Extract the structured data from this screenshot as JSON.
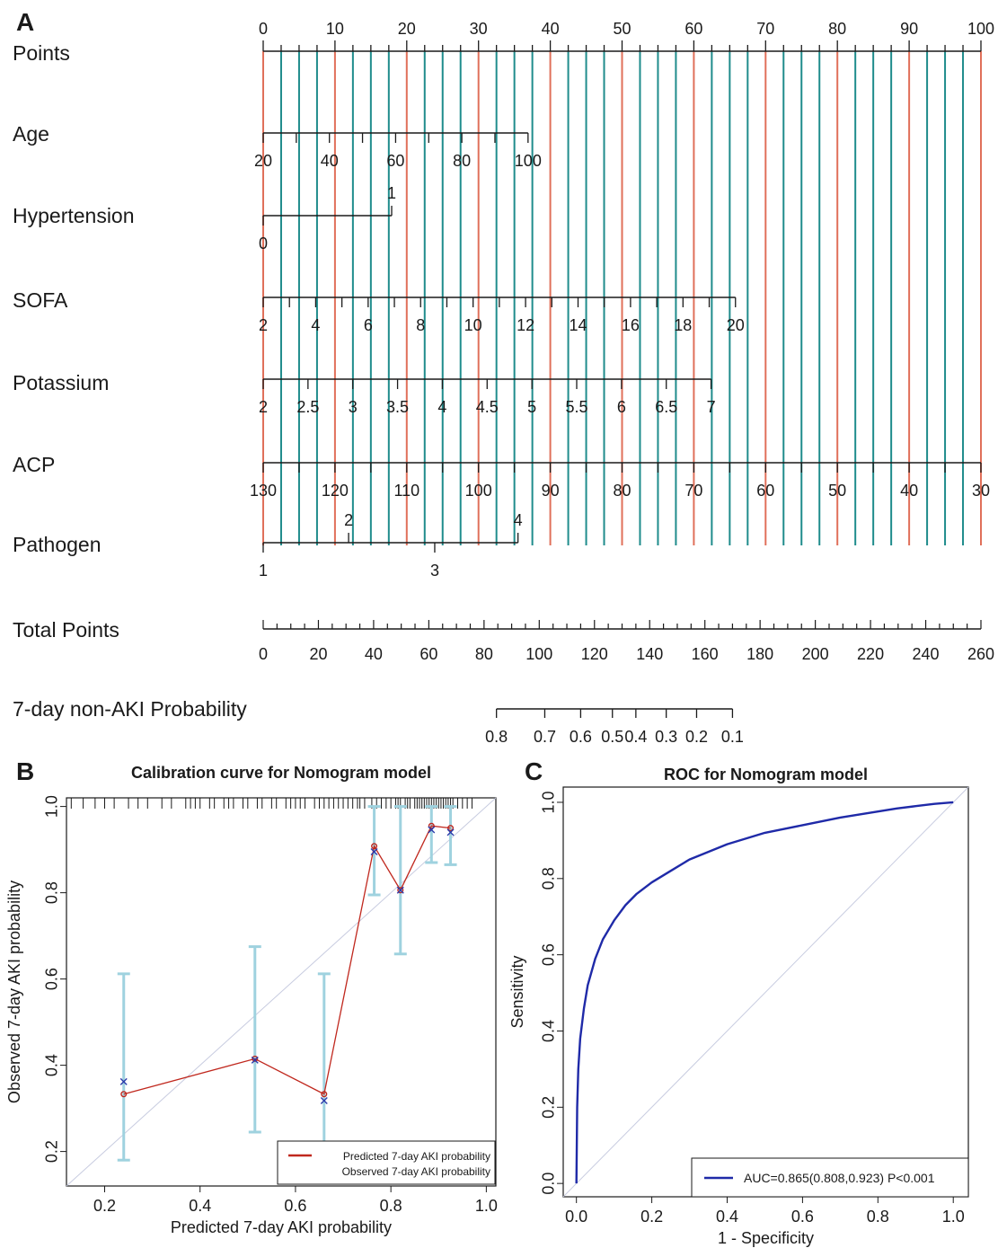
{
  "panels": {
    "a": {
      "letter": "A"
    },
    "b": {
      "letter": "B"
    },
    "c": {
      "letter": "C"
    }
  },
  "chart_data": [
    {
      "type": "nomogram",
      "points_scale": {
        "label": "Points",
        "min": 0,
        "max": 100,
        "labels": [
          0,
          10,
          20,
          30,
          40,
          50,
          60,
          70,
          80,
          90,
          100
        ]
      },
      "variables": [
        {
          "label": "Age",
          "points_range": [
            0,
            36.9
          ],
          "ticks": [
            20,
            30,
            40,
            50,
            60,
            70,
            80,
            90,
            100
          ],
          "labels": [
            "20",
            "40",
            "60",
            "80",
            "100"
          ]
        },
        {
          "label": "Hypertension",
          "points_range": [
            0,
            17.9
          ],
          "levels": [
            {
              "label": "1",
              "points": 17.9,
              "side": "above"
            },
            {
              "label": "0",
              "points": 0,
              "side": "below"
            }
          ]
        },
        {
          "label": "SOFA",
          "points_range": [
            0,
            65.8
          ],
          "ticks": [
            2,
            3,
            4,
            5,
            6,
            7,
            8,
            9,
            10,
            11,
            12,
            13,
            14,
            15,
            16,
            17,
            18,
            19,
            20
          ],
          "labels": [
            "2",
            "4",
            "6",
            "8",
            "10",
            "12",
            "14",
            "16",
            "18",
            "20"
          ]
        },
        {
          "label": "Potassium",
          "points_range": [
            0,
            62.4
          ],
          "ticks": [
            2,
            2.5,
            3,
            3.5,
            4,
            4.5,
            5,
            5.5,
            6,
            6.5,
            7
          ],
          "labels": [
            "2",
            "2.5",
            "3",
            "3.5",
            "4",
            "4.5",
            "5",
            "5.5",
            "6",
            "6.5",
            "7"
          ]
        },
        {
          "label": "ACP",
          "points_range": [
            0,
            100
          ],
          "ticks": [
            130,
            125,
            120,
            115,
            110,
            105,
            100,
            95,
            90,
            85,
            80,
            75,
            70,
            65,
            60,
            55,
            50,
            45,
            40,
            35,
            30
          ],
          "labels": [
            "130",
            "120",
            "110",
            "100",
            "90",
            "80",
            "70",
            "60",
            "50",
            "40",
            "30"
          ]
        },
        {
          "label": "Pathogen",
          "points_range": [
            0,
            35.5
          ],
          "levels": [
            {
              "label": "1",
              "points": 0,
              "side": "below"
            },
            {
              "label": "2",
              "points": 11.9,
              "side": "above"
            },
            {
              "label": "3",
              "points": 23.9,
              "side": "below"
            },
            {
              "label": "4",
              "points": 35.5,
              "side": "above"
            }
          ]
        }
      ],
      "total_points": {
        "label": "Total Points",
        "min": 0,
        "max": 260,
        "labels": [
          0,
          20,
          40,
          60,
          80,
          100,
          120,
          140,
          160,
          180,
          200,
          220,
          240,
          260
        ]
      },
      "probability": {
        "label": "7-day non-AKI Probability",
        "ticks": [
          {
            "label": "0.8",
            "total_points": 84.5
          },
          {
            "label": "0.7",
            "total_points": 102
          },
          {
            "label": "0.6",
            "total_points": 115
          },
          {
            "label": "0.5",
            "total_points": 126.5
          },
          {
            "label": "0.4",
            "total_points": 135
          },
          {
            "label": "0.3",
            "total_points": 146
          },
          {
            "label": "0.2",
            "total_points": 157
          },
          {
            "label": "0.1",
            "total_points": 170
          }
        ]
      },
      "gridlines_points": "every 2.5 points from 0 to 100; red at multiples of 10, teal elsewhere",
      "colors": {
        "axis": "#1a1a1a",
        "grid_major": "#e0705a",
        "grid_minor": "#1f8c8c"
      }
    },
    {
      "type": "line",
      "title": "Calibration curve for Nomogram model",
      "xlabel": "Predicted 7-day AKI probability",
      "ylabel": "Observed 7-day AKI probability",
      "xlim": [
        0.12,
        1.02
      ],
      "ylim": [
        0.12,
        1.02
      ],
      "xticks": [
        "0.2",
        "0.4",
        "0.6",
        "0.8",
        "1.0"
      ],
      "yticks": [
        "0.2",
        "0.4",
        "0.6",
        "0.8",
        "1.0"
      ],
      "x": [
        0.24,
        0.515,
        0.66,
        0.765,
        0.82,
        0.885,
        0.925
      ],
      "series": [
        {
          "name": "Predicted 7-day AKI probability",
          "values": [
            0.333,
            0.415,
            0.333,
            0.908,
            0.806,
            0.955,
            0.95
          ],
          "color": "#c0281e",
          "marker": "o"
        },
        {
          "name": "Observed 7-day AKI probability",
          "values": [
            0.362,
            0.412,
            0.318,
            0.895,
            0.806,
            0.946,
            0.94
          ],
          "color": "#2b3aaa",
          "marker": "x"
        }
      ],
      "error_bars": {
        "color": "#9fd2df",
        "lower": [
          0.18,
          0.245,
          0.178,
          0.795,
          0.658,
          0.87,
          0.865
        ],
        "upper": [
          0.612,
          0.675,
          0.612,
          1.0,
          1.0,
          1.0,
          1.0
        ]
      },
      "rug_x": [
        0.13,
        0.155,
        0.18,
        0.2,
        0.22,
        0.25,
        0.27,
        0.29,
        0.32,
        0.34,
        0.37,
        0.38,
        0.39,
        0.4,
        0.42,
        0.43,
        0.45,
        0.46,
        0.47,
        0.49,
        0.5,
        0.52,
        0.53,
        0.55,
        0.56,
        0.58,
        0.59,
        0.6,
        0.61,
        0.62,
        0.64,
        0.65,
        0.66,
        0.67,
        0.68,
        0.69,
        0.7,
        0.71,
        0.72,
        0.73,
        0.735,
        0.745,
        0.76,
        0.77,
        0.78,
        0.79,
        0.8,
        0.81,
        0.815,
        0.82,
        0.83,
        0.835,
        0.84,
        0.85,
        0.855,
        0.86,
        0.865,
        0.87,
        0.875,
        0.88,
        0.885,
        0.89,
        0.895,
        0.9,
        0.905,
        0.91,
        0.915,
        0.92,
        0.925,
        0.93,
        0.94,
        0.95,
        0.96,
        0.97
      ],
      "reference_line": "diagonal",
      "legend": "bottom-right"
    },
    {
      "type": "line",
      "title": "ROC for Nomogram model",
      "xlabel": "1 - Specificity",
      "ylabel": "Sensitivity",
      "xlim": [
        -0.035,
        1.04
      ],
      "ylim": [
        -0.035,
        1.04
      ],
      "xticks": [
        "0.0",
        "0.2",
        "0.4",
        "0.6",
        "0.8",
        "1.0"
      ],
      "yticks": [
        "0.0",
        "0.2",
        "0.4",
        "0.6",
        "0.8",
        "1.0"
      ],
      "x": [
        0,
        0.002,
        0.005,
        0.01,
        0.02,
        0.03,
        0.05,
        0.07,
        0.1,
        0.13,
        0.16,
        0.2,
        0.25,
        0.3,
        0.35,
        0.4,
        0.45,
        0.5,
        0.55,
        0.6,
        0.65,
        0.7,
        0.75,
        0.8,
        0.85,
        0.9,
        0.95,
        1.0
      ],
      "series": [
        {
          "name": "AUC=0.865(0.808,0.923)  P<0.001",
          "values": [
            0,
            0.2,
            0.3,
            0.38,
            0.46,
            0.52,
            0.59,
            0.64,
            0.69,
            0.73,
            0.76,
            0.79,
            0.82,
            0.85,
            0.87,
            0.89,
            0.905,
            0.92,
            0.93,
            0.94,
            0.95,
            0.96,
            0.968,
            0.976,
            0.984,
            0.99,
            0.996,
            1.0
          ],
          "color": "#1f2aa8"
        }
      ],
      "reference_line": "diagonal",
      "legend": "bottom-right"
    }
  ]
}
